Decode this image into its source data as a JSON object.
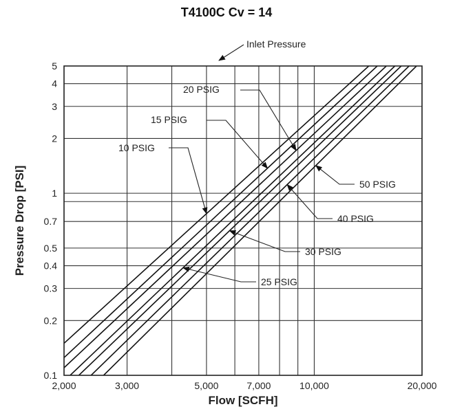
{
  "chart_data": {
    "type": "line",
    "title": "T4100C Cv = 14",
    "xlabel": "Flow [SCFH]",
    "ylabel": "Pressure Drop [PSI]",
    "x_scale": "log",
    "y_scale": "log",
    "xlim": [
      2000,
      20000
    ],
    "ylim": [
      0.1,
      5
    ],
    "grid": true,
    "x_ticks": [
      2000,
      3000,
      5000,
      7000,
      10000,
      20000
    ],
    "x_tick_labels": [
      "2,000",
      "3,000",
      "5,000",
      "7,000",
      "10,000",
      "20,000"
    ],
    "x_minor_grid": [
      4000,
      6000,
      8000,
      9000
    ],
    "y_ticks": [
      0.1,
      0.2,
      0.3,
      0.4,
      0.5,
      0.7,
      1,
      2,
      3,
      4,
      5
    ],
    "y_tick_labels": [
      "0.1",
      "0.2",
      "0.3",
      "0.4",
      "0.5",
      "0.7",
      "1",
      "2",
      "3",
      "4",
      "5"
    ],
    "y_minor_grid": [
      0.9
    ],
    "legend_title": "Inlet Pressure",
    "series": [
      {
        "name": "10 PSIG",
        "x": [
          2000,
          14200
        ],
        "y": [
          0.15,
          5
        ]
      },
      {
        "name": "15 PSIG",
        "x": [
          2000,
          15000
        ],
        "y": [
          0.125,
          5
        ]
      },
      {
        "name": "20 PSIG",
        "x": [
          2000,
          15900
        ],
        "y": [
          0.11,
          5
        ]
      },
      {
        "name": "25 PSIG",
        "x": [
          2080,
          16800
        ],
        "y": [
          0.1,
          5
        ]
      },
      {
        "name": "30 PSIG",
        "x": [
          2200,
          17500
        ],
        "y": [
          0.1,
          5
        ]
      },
      {
        "name": "40 PSIG",
        "x": [
          2380,
          18400
        ],
        "y": [
          0.1,
          5
        ]
      },
      {
        "name": "50 PSIG",
        "x": [
          2580,
          19300
        ],
        "y": [
          0.1,
          5
        ]
      }
    ],
    "annotations": [
      {
        "label": "10 PSIG",
        "series": "10 PSIG",
        "at_x": 5000
      },
      {
        "label": "15 PSIG",
        "series": "15 PSIG",
        "at_x": 7400
      },
      {
        "label": "20 PSIG",
        "series": "20 PSIG",
        "at_x": 8900
      },
      {
        "label": "25 PSIG",
        "series": "25 PSIG",
        "at_x": 4300
      },
      {
        "label": "30 PSIG",
        "series": "30 PSIG",
        "at_x": 5800
      },
      {
        "label": "40 PSIG",
        "series": "40 PSIG",
        "at_x": 8400
      },
      {
        "label": "50 PSIG",
        "series": "50 PSIG",
        "at_x": 10100
      }
    ]
  }
}
